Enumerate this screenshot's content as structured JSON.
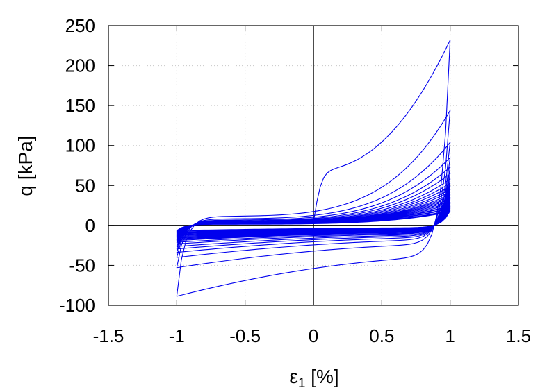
{
  "chart_data": {
    "type": "line",
    "title": "",
    "xlabel_main": "ε",
    "xlabel_sub": "1",
    "xlabel_unit": " [%]",
    "ylabel": "q [kPa]",
    "xlim": [
      -1.5,
      1.5
    ],
    "ylim": [
      -100,
      250
    ],
    "x_ticks": [
      -1.5,
      -1,
      -0.5,
      0,
      0.5,
      1,
      1.5
    ],
    "x_tick_labels": [
      "-1.5",
      "-1",
      "-0.5",
      "0",
      "0.5",
      "1",
      "1.5"
    ],
    "y_ticks": [
      -100,
      -50,
      0,
      50,
      100,
      150,
      200,
      250
    ],
    "y_tick_labels": [
      "-100",
      "-50",
      "0",
      "50",
      "100",
      "150",
      "200",
      "250"
    ],
    "grid": true,
    "zero_axes": true,
    "series_color": "#0000ee",
    "cycles": 24,
    "strain_amplitude_pct": 1,
    "peak_q_kpa": [
      232,
      144,
      104,
      85,
      73,
      65,
      58,
      53,
      49,
      45,
      42,
      39,
      37,
      35,
      33,
      31,
      29,
      27,
      25,
      24,
      22,
      21,
      19,
      18
    ],
    "trough_q_kpa": [
      -84,
      -50,
      -38,
      -32,
      -28,
      -25,
      -22,
      -20,
      -18,
      -17,
      -16,
      -15,
      -14,
      -13,
      -12,
      -11,
      -10,
      -9,
      -8,
      -8,
      -7,
      -7,
      -6,
      -6
    ]
  }
}
